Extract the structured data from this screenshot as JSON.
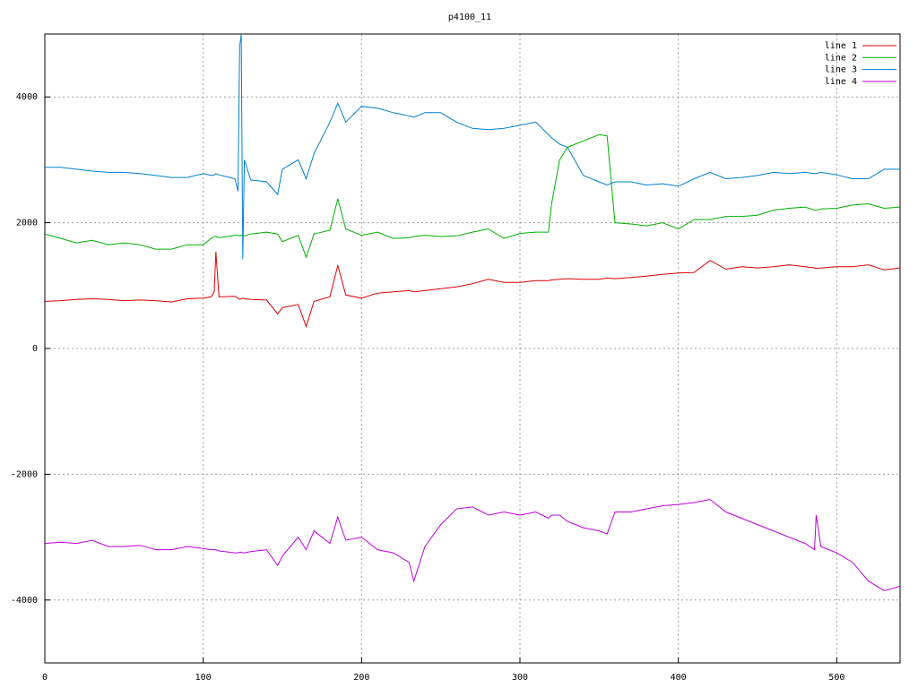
{
  "chart_data": {
    "type": "line",
    "title": "p4100_11",
    "x": [
      0,
      10,
      20,
      30,
      40,
      50,
      60,
      70,
      80,
      90,
      100,
      105,
      107,
      108,
      110,
      120,
      122,
      123,
      124,
      125,
      126,
      130,
      140,
      147,
      150,
      160,
      165,
      170,
      180,
      185,
      190,
      200,
      210,
      220,
      230,
      233,
      240,
      250,
      260,
      270,
      280,
      290,
      300,
      310,
      318,
      320,
      325,
      330,
      340,
      350,
      355,
      360,
      370,
      380,
      390,
      400,
      410,
      420,
      430,
      440,
      450,
      460,
      470,
      480,
      486,
      487,
      490,
      500,
      510,
      520,
      530,
      540
    ],
    "series": [
      {
        "name": "line 1",
        "color": "#e00000",
        "values": [
          750,
          760,
          780,
          790,
          780,
          760,
          770,
          760,
          740,
          790,
          800,
          820,
          900,
          1540,
          820,
          830,
          800,
          780,
          790,
          800,
          790,
          780,
          770,
          550,
          650,
          700,
          350,
          750,
          820,
          1320,
          850,
          800,
          880,
          900,
          920,
          900,
          920,
          950,
          980,
          1030,
          1100,
          1050,
          1050,
          1080,
          1080,
          1090,
          1100,
          1110,
          1100,
          1100,
          1120,
          1110,
          1130,
          1150,
          1180,
          1200,
          1210,
          1400,
          1260,
          1300,
          1280,
          1300,
          1330,
          1300,
          1280,
          1270,
          1280,
          1300,
          1300,
          1330,
          1250,
          1280
        ]
      },
      {
        "name": "line 2",
        "color": "#00b000",
        "values": [
          1820,
          1750,
          1680,
          1720,
          1650,
          1680,
          1650,
          1580,
          1580,
          1650,
          1650,
          1750,
          1780,
          1780,
          1760,
          1800,
          1800,
          1790,
          1800,
          1800,
          1790,
          1820,
          1850,
          1820,
          1700,
          1800,
          1450,
          1820,
          1880,
          2380,
          1900,
          1800,
          1850,
          1750,
          1760,
          1780,
          1800,
          1780,
          1790,
          1850,
          1900,
          1750,
          1830,
          1850,
          1850,
          2300,
          3000,
          3200,
          3300,
          3400,
          3380,
          2000,
          1980,
          1950,
          2000,
          1900,
          2050,
          2050,
          2100,
          2100,
          2120,
          2200,
          2230,
          2250,
          2200,
          2200,
          2220,
          2230,
          2280,
          2300,
          2230,
          2250
        ]
      },
      {
        "name": "line 3",
        "color": "#0080d0",
        "values": [
          2880,
          2880,
          2850,
          2820,
          2800,
          2800,
          2780,
          2750,
          2720,
          2720,
          2780,
          2750,
          2760,
          2780,
          2760,
          2700,
          2500,
          4800,
          5000,
          1420,
          3000,
          2680,
          2650,
          2450,
          2850,
          3000,
          2700,
          3100,
          3600,
          3900,
          3600,
          3850,
          3820,
          3750,
          3700,
          3680,
          3750,
          3750,
          3600,
          3500,
          3480,
          3500,
          3550,
          3600,
          3400,
          3350,
          3250,
          3200,
          2750,
          2650,
          2600,
          2650,
          2650,
          2600,
          2620,
          2580,
          2700,
          2800,
          2700,
          2720,
          2750,
          2800,
          2780,
          2800,
          2780,
          2780,
          2800,
          2760,
          2700,
          2700,
          2850,
          2850
        ]
      },
      {
        "name": "line 4",
        "color": "#c000e0",
        "values": [
          -3100,
          -3080,
          -3100,
          -3050,
          -3150,
          -3150,
          -3130,
          -3200,
          -3200,
          -3150,
          -3180,
          -3200,
          -3200,
          -3200,
          -3220,
          -3250,
          -3250,
          -3240,
          -3240,
          -3250,
          -3250,
          -3230,
          -3200,
          -3450,
          -3300,
          -3000,
          -3200,
          -2900,
          -3100,
          -2680,
          -3050,
          -3000,
          -3200,
          -3250,
          -3400,
          -3700,
          -3150,
          -2800,
          -2550,
          -2520,
          -2650,
          -2600,
          -2650,
          -2600,
          -2700,
          -2650,
          -2650,
          -2750,
          -2850,
          -2900,
          -2950,
          -2600,
          -2600,
          -2550,
          -2500,
          -2480,
          -2450,
          -2400,
          -2600,
          -2700,
          -2800,
          -2900,
          -3000,
          -3100,
          -3200,
          -2650,
          -3150,
          -3250,
          -3400,
          -3700,
          -3850,
          -3780
        ]
      }
    ],
    "xlim": [
      0,
      540
    ],
    "ylim": [
      -5000,
      5000
    ],
    "xticks": [
      0,
      100,
      200,
      300,
      400,
      500
    ],
    "yticks": [
      -4000,
      -2000,
      0,
      2000,
      4000
    ],
    "grid": true,
    "legend": "top-right"
  }
}
